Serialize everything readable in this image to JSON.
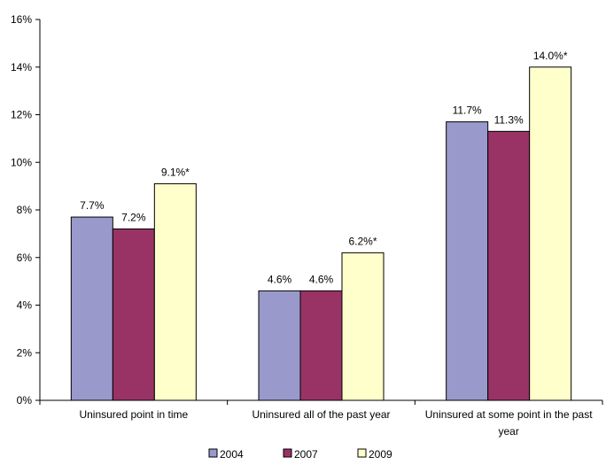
{
  "chart_data": {
    "type": "bar",
    "categories": [
      "Uninsured point in time",
      "Uninsured all of the past year",
      "Uninsured at some point in the past year"
    ],
    "category_label_lines": [
      [
        "Uninsured point in time"
      ],
      [
        "Uninsured all of the past year"
      ],
      [
        "Uninsured at some point in the past",
        "year"
      ]
    ],
    "series": [
      {
        "name": "2004",
        "values": [
          7.7,
          4.6,
          11.7
        ],
        "labels": [
          "7.7%",
          "4.6%",
          "11.7%"
        ],
        "color": "#9999CC"
      },
      {
        "name": "2007",
        "values": [
          7.2,
          4.6,
          11.3
        ],
        "labels": [
          "7.2%",
          "4.6%",
          "11.3%"
        ],
        "color": "#993366"
      },
      {
        "name": "2009",
        "values": [
          9.1,
          6.2,
          14.0
        ],
        "labels": [
          "9.1%*",
          "6.2%*",
          "14.0%*"
        ],
        "color": "#FFFFCC"
      }
    ],
    "ylim": [
      0,
      16
    ],
    "yticks": [
      0,
      2,
      4,
      6,
      8,
      10,
      12,
      14,
      16
    ],
    "ytick_labels": [
      "0%",
      "2%",
      "4%",
      "6%",
      "8%",
      "10%",
      "12%",
      "14%",
      "16%"
    ],
    "grid": false,
    "legend_position": "bottom",
    "bar_outline_color": "#000000"
  }
}
